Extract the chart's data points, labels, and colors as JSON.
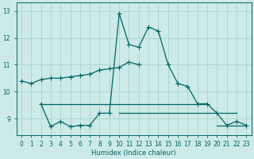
{
  "xlabel": "Humidex (Indice chaleur)",
  "background_color": "#cceae7",
  "grid_color": "#aad4d0",
  "line_color": "#006666",
  "xlim": [
    -0.5,
    23.5
  ],
  "ylim": [
    8.4,
    13.3
  ],
  "yticks": [
    9,
    10,
    11,
    12,
    13
  ],
  "xticks": [
    0,
    1,
    2,
    3,
    4,
    5,
    6,
    7,
    8,
    9,
    10,
    11,
    12,
    13,
    14,
    15,
    16,
    17,
    18,
    19,
    20,
    21,
    22,
    23
  ],
  "lines": [
    {
      "x": [
        0,
        1,
        2,
        3,
        4,
        5,
        6,
        7,
        8,
        9,
        10,
        11,
        12
      ],
      "y": [
        10.4,
        10.3,
        10.45,
        10.5,
        10.5,
        10.55,
        10.6,
        10.65,
        10.8,
        10.85,
        10.9,
        11.1,
        11.0
      ],
      "marker": true
    },
    {
      "x": [
        2,
        3,
        4,
        5,
        6,
        7,
        8,
        9,
        10,
        11,
        12,
        13,
        14,
        15,
        16,
        17,
        18,
        19
      ],
      "y": [
        9.55,
        9.55,
        9.55,
        9.55,
        9.55,
        9.55,
        9.55,
        9.55,
        9.55,
        9.55,
        9.55,
        9.55,
        9.55,
        9.55,
        9.55,
        9.55,
        9.55,
        9.55
      ],
      "marker": false
    },
    {
      "x": [
        10,
        11,
        12,
        13,
        14,
        15,
        16,
        17,
        18,
        19,
        20,
        21,
        22
      ],
      "y": [
        9.2,
        9.2,
        9.2,
        9.2,
        9.2,
        9.2,
        9.2,
        9.2,
        9.2,
        9.2,
        9.2,
        9.2,
        9.2
      ],
      "marker": false
    },
    {
      "x": [
        20,
        21,
        22,
        23
      ],
      "y": [
        8.75,
        8.75,
        8.75,
        8.75
      ],
      "marker": false
    },
    {
      "x": [
        2,
        3,
        4,
        5,
        6,
        7,
        8,
        9,
        10,
        11,
        12,
        13,
        14,
        15,
        16,
        17,
        18,
        19,
        20,
        21,
        22,
        23
      ],
      "y": [
        9.55,
        8.7,
        8.9,
        8.7,
        8.75,
        8.75,
        9.2,
        9.2,
        12.9,
        11.75,
        11.65,
        12.4,
        12.25,
        11.0,
        10.3,
        10.2,
        9.55,
        9.55,
        9.2,
        8.75,
        8.9,
        8.75
      ],
      "marker": true
    }
  ]
}
